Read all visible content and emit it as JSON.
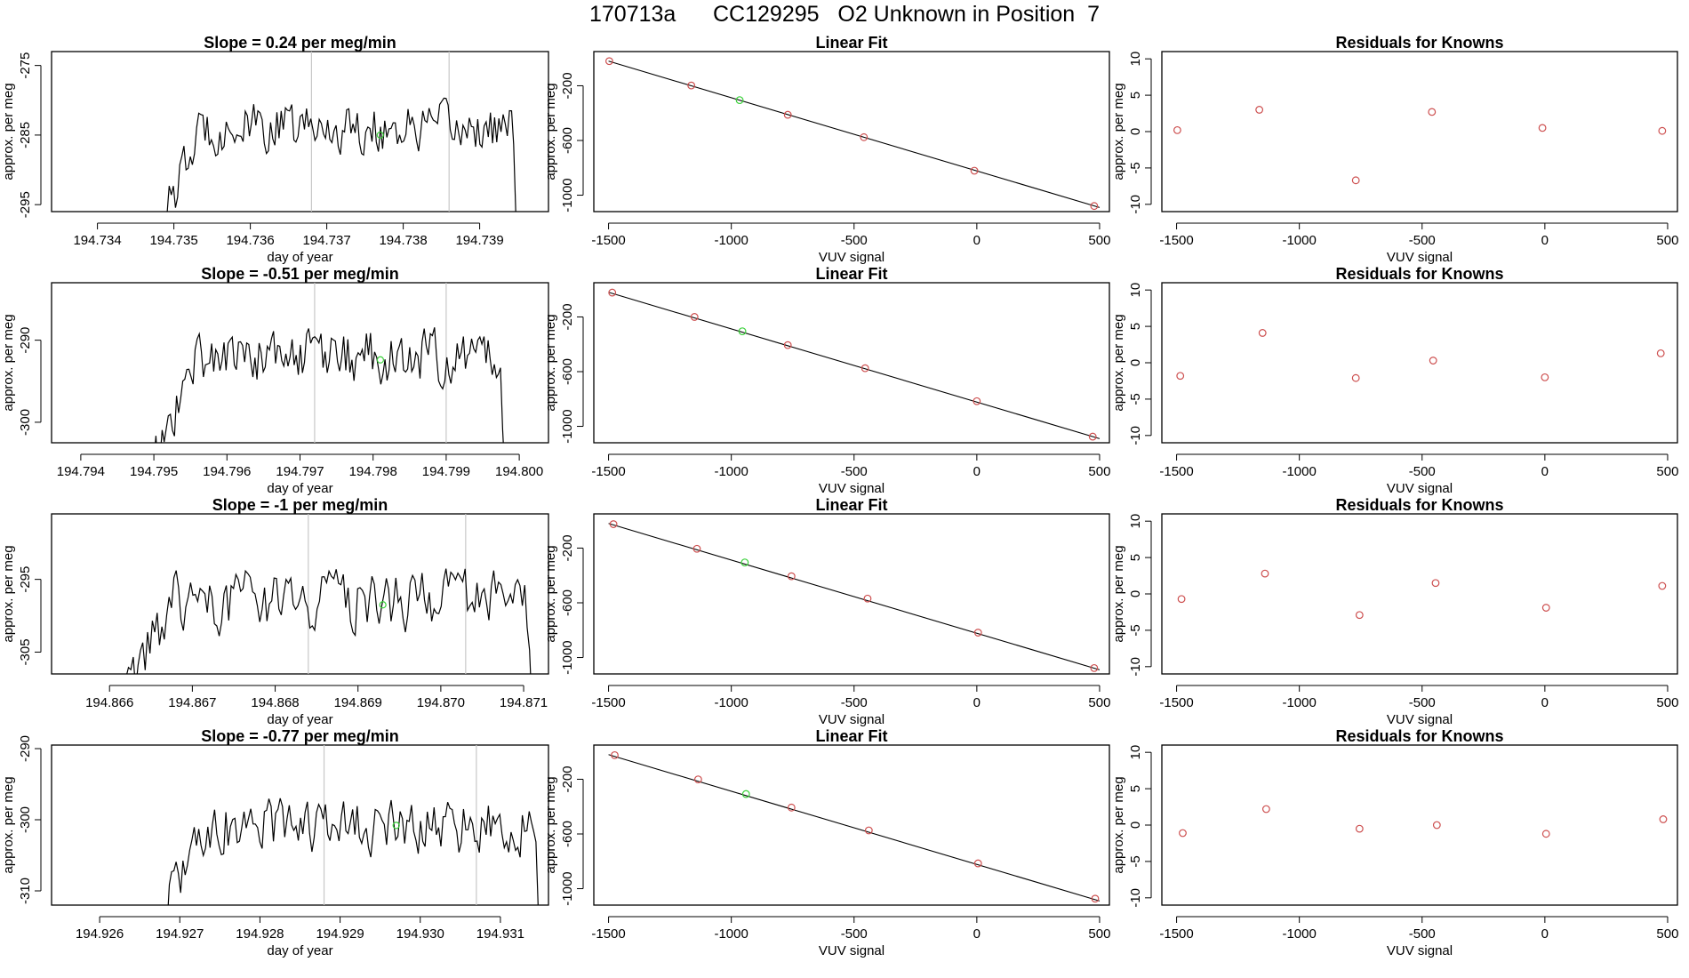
{
  "figure_title": "170713a      CC129295   O2 Unknown in Position  7",
  "colors": {
    "trace": "#000000",
    "known_point": "#cd4f4f",
    "unknown_point": "#39d039",
    "divider": "#c8c8c8"
  },
  "chart_data": [
    {
      "type": "line",
      "panel": "time-series",
      "title": "Slope =  0.24  per meg/min",
      "xlabel": "day of year",
      "ylabel": "approx. per meg",
      "xlim": [
        194.7334,
        194.7399
      ],
      "ylim": [
        -296,
        -273
      ],
      "xticks": [
        194.734,
        194.735,
        194.736,
        194.737,
        194.738,
        194.739
      ],
      "xtick_labels": [
        "194.734",
        "194.735",
        "194.736",
        "194.737",
        "194.738",
        "194.739"
      ],
      "yticks": [
        -295,
        -285,
        -275
      ],
      "ytick_labels": [
        "-295",
        "-285",
        "-275"
      ],
      "trace_start": 194.7348,
      "trace_end": 194.7395,
      "level": -284.0,
      "noise": 3.2,
      "dividers": [
        194.7368,
        194.7386
      ],
      "unknown_point": {
        "x": 194.7377,
        "y": -285.0
      }
    },
    {
      "type": "scatter",
      "panel": "linear-fit",
      "title": "Linear Fit",
      "xlabel": "VUV signal",
      "ylabel": "approx. per meg",
      "xlim": [
        -1560,
        540
      ],
      "ylim": [
        -1120,
        50
      ],
      "xticks": [
        -1500,
        -1000,
        -500,
        0,
        500
      ],
      "xtick_labels": [
        "-1500",
        "-1000",
        "-500",
        "0",
        "500"
      ],
      "yticks": [
        -1000,
        -600,
        -200
      ],
      "ytick_labels": [
        "-1000",
        "-600",
        "-200"
      ],
      "fit_line": {
        "x": [
          -1500,
          500
        ],
        "y": [
          -20,
          -1090
        ]
      },
      "knowns": [
        {
          "x": -1497,
          "y": -20
        },
        {
          "x": -1163,
          "y": -198
        },
        {
          "x": -770,
          "y": -412
        },
        {
          "x": -460,
          "y": -576
        },
        {
          "x": -10,
          "y": -821
        },
        {
          "x": 478,
          "y": -1079
        }
      ],
      "unknown": {
        "x": -966,
        "y": -305
      }
    },
    {
      "type": "scatter",
      "panel": "residuals",
      "title": "Residuals for Knowns",
      "xlabel": "VUV signal",
      "ylabel": "approx. per meg",
      "xlim": [
        -1560,
        540
      ],
      "ylim": [
        -11,
        11
      ],
      "xticks": [
        -1500,
        -1000,
        -500,
        0,
        500
      ],
      "xtick_labels": [
        "-1500",
        "-1000",
        "-500",
        "0",
        "500"
      ],
      "yticks": [
        -10,
        -5,
        0,
        5,
        10
      ],
      "ytick_labels": [
        "-10",
        "-5",
        "0",
        "5",
        "10"
      ],
      "points": [
        {
          "x": -1497,
          "y": 0.2
        },
        {
          "x": -1163,
          "y": 3.0
        },
        {
          "x": -770,
          "y": -6.7
        },
        {
          "x": -460,
          "y": 2.7
        },
        {
          "x": -10,
          "y": 0.5
        },
        {
          "x": 478,
          "y": 0.1
        }
      ]
    },
    {
      "type": "line",
      "panel": "time-series",
      "title": "Slope =  -0.51  per meg/min",
      "xlabel": "day of year",
      "ylabel": "approx. per meg",
      "xlim": [
        194.7936,
        194.8004
      ],
      "ylim": [
        -302.5,
        -283
      ],
      "xticks": [
        194.794,
        194.795,
        194.796,
        194.797,
        194.798,
        194.799,
        194.8
      ],
      "xtick_labels": [
        "194.794",
        "194.795",
        "194.796",
        "194.797",
        "194.798",
        "194.799",
        "194.800"
      ],
      "yticks": [
        -300,
        -290
      ],
      "ytick_labels": [
        "-300",
        "-290"
      ],
      "trace_start": 194.795,
      "trace_end": 194.7998,
      "level": -292.0,
      "noise": 3.0,
      "dividers": [
        194.7972,
        194.799
      ],
      "unknown_point": {
        "x": 194.7981,
        "y": -292.4
      }
    },
    {
      "type": "scatter",
      "panel": "linear-fit",
      "title": "Linear Fit",
      "xlabel": "VUV signal",
      "ylabel": "approx. per meg",
      "xlim": [
        -1560,
        540
      ],
      "ylim": [
        -1120,
        50
      ],
      "xticks": [
        -1500,
        -1000,
        -500,
        0,
        500
      ],
      "xtick_labels": [
        "-1500",
        "-1000",
        "-500",
        "0",
        "500"
      ],
      "yticks": [
        -1000,
        -600,
        -200
      ],
      "ytick_labels": [
        "-1000",
        "-600",
        "-200"
      ],
      "fit_line": {
        "x": [
          -1500,
          500
        ],
        "y": [
          -20,
          -1090
        ]
      },
      "knowns": [
        {
          "x": -1485,
          "y": -22
        },
        {
          "x": -1150,
          "y": -200
        },
        {
          "x": -770,
          "y": -406
        },
        {
          "x": -455,
          "y": -575
        },
        {
          "x": 0,
          "y": -816
        },
        {
          "x": 472,
          "y": -1075
        }
      ],
      "unknown": {
        "x": -955,
        "y": -305
      }
    },
    {
      "type": "scatter",
      "panel": "residuals",
      "title": "Residuals for Knowns",
      "xlabel": "VUV signal",
      "ylabel": "approx. per meg",
      "xlim": [
        -1560,
        540
      ],
      "ylim": [
        -11,
        11
      ],
      "xticks": [
        -1500,
        -1000,
        -500,
        0,
        500
      ],
      "xtick_labels": [
        "-1500",
        "-1000",
        "-500",
        "0",
        "500"
      ],
      "yticks": [
        -10,
        -5,
        0,
        5,
        10
      ],
      "ytick_labels": [
        "-10",
        "-5",
        "0",
        "5",
        "10"
      ],
      "points": [
        {
          "x": -1485,
          "y": -1.8
        },
        {
          "x": -1150,
          "y": 4.1
        },
        {
          "x": -770,
          "y": -2.1
        },
        {
          "x": -455,
          "y": 0.3
        },
        {
          "x": 0,
          "y": -2.0
        },
        {
          "x": 472,
          "y": 1.3
        }
      ]
    },
    {
      "type": "line",
      "panel": "time-series",
      "title": "Slope =  -1  per meg/min",
      "xlabel": "day of year",
      "ylabel": "approx. per meg",
      "xlim": [
        194.8653,
        194.8713
      ],
      "ylim": [
        -308,
        -286
      ],
      "xticks": [
        194.866,
        194.867,
        194.868,
        194.869,
        194.87,
        194.871
      ],
      "xtick_labels": [
        "194.866",
        "194.867",
        "194.868",
        "194.869",
        "194.870",
        "194.871"
      ],
      "yticks": [
        -305,
        -295
      ],
      "ytick_labels": [
        "-305",
        "-295"
      ],
      "trace_start": 194.8662,
      "trace_end": 194.8711,
      "level": -298.0,
      "noise": 3.6,
      "dividers": [
        194.8684,
        194.8703
      ],
      "unknown_point": {
        "x": 194.8693,
        "y": -298.5
      }
    },
    {
      "type": "scatter",
      "panel": "linear-fit",
      "title": "Linear Fit",
      "xlabel": "VUV signal",
      "ylabel": "approx. per meg",
      "xlim": [
        -1560,
        540
      ],
      "ylim": [
        -1120,
        50
      ],
      "xticks": [
        -1500,
        -1000,
        -500,
        0,
        500
      ],
      "xtick_labels": [
        "-1500",
        "-1000",
        "-500",
        "0",
        "500"
      ],
      "yticks": [
        -1000,
        -600,
        -200
      ],
      "ytick_labels": [
        "-1000",
        "-600",
        "-200"
      ],
      "fit_line": {
        "x": [
          -1500,
          500
        ],
        "y": [
          -20,
          -1090
        ]
      },
      "knowns": [
        {
          "x": -1480,
          "y": -25
        },
        {
          "x": -1140,
          "y": -205
        },
        {
          "x": -755,
          "y": -406
        },
        {
          "x": -445,
          "y": -569
        },
        {
          "x": 5,
          "y": -818
        },
        {
          "x": 478,
          "y": -1077
        }
      ],
      "unknown": {
        "x": -945,
        "y": -305
      }
    },
    {
      "type": "scatter",
      "panel": "residuals",
      "title": "Residuals for Knowns",
      "xlabel": "VUV signal",
      "ylabel": "approx. per meg",
      "xlim": [
        -1560,
        540
      ],
      "ylim": [
        -11,
        11
      ],
      "xticks": [
        -1500,
        -1000,
        -500,
        0,
        500
      ],
      "xtick_labels": [
        "-1500",
        "-1000",
        "-500",
        "0",
        "500"
      ],
      "yticks": [
        -10,
        -5,
        0,
        5,
        10
      ],
      "ytick_labels": [
        "-10",
        "-5",
        "0",
        "5",
        "10"
      ],
      "points": [
        {
          "x": -1480,
          "y": -0.7
        },
        {
          "x": -1140,
          "y": 2.8
        },
        {
          "x": -755,
          "y": -2.9
        },
        {
          "x": -445,
          "y": 1.5
        },
        {
          "x": 5,
          "y": -1.9
        },
        {
          "x": 478,
          "y": 1.1
        }
      ]
    },
    {
      "type": "line",
      "panel": "time-series",
      "title": "Slope =  -0.77  per meg/min",
      "xlabel": "day of year",
      "ylabel": "approx. per meg",
      "xlim": [
        194.9254,
        194.9316
      ],
      "ylim": [
        -312,
        -289.5
      ],
      "xticks": [
        194.926,
        194.927,
        194.928,
        194.929,
        194.93,
        194.931
      ],
      "xtick_labels": [
        "194.926",
        "194.927",
        "194.928",
        "194.929",
        "194.930",
        "194.931"
      ],
      "yticks": [
        -310,
        -300,
        -290
      ],
      "ytick_labels": [
        "-310",
        "-300",
        "-290"
      ],
      "trace_start": 194.9267,
      "trace_end": 194.9315,
      "level": -301.0,
      "noise": 3.5,
      "dividers": [
        194.9288,
        194.9307
      ],
      "unknown_point": {
        "x": 194.9297,
        "y": -300.8
      }
    },
    {
      "type": "scatter",
      "panel": "linear-fit",
      "title": "Linear Fit",
      "xlabel": "VUV signal",
      "ylabel": "approx. per meg",
      "xlim": [
        -1560,
        540
      ],
      "ylim": [
        -1120,
        50
      ],
      "xticks": [
        -1500,
        -1000,
        -500,
        0,
        500
      ],
      "xtick_labels": [
        "-1500",
        "-1000",
        "-500",
        "0",
        "500"
      ],
      "yticks": [
        -1000,
        -600,
        -200
      ],
      "ytick_labels": [
        "-1000",
        "-600",
        "-200"
      ],
      "fit_line": {
        "x": [
          -1500,
          500
        ],
        "y": [
          -20,
          -1090
        ]
      },
      "knowns": [
        {
          "x": -1475,
          "y": -24
        },
        {
          "x": -1135,
          "y": -201
        },
        {
          "x": -755,
          "y": -407
        },
        {
          "x": -440,
          "y": -574
        },
        {
          "x": 5,
          "y": -815
        },
        {
          "x": 482,
          "y": -1073
        }
      ],
      "unknown": {
        "x": -940,
        "y": -308
      }
    },
    {
      "type": "scatter",
      "panel": "residuals",
      "title": "Residuals for Knowns",
      "xlabel": "VUV signal",
      "ylabel": "approx. per meg",
      "xlim": [
        -1560,
        540
      ],
      "ylim": [
        -11,
        11
      ],
      "xticks": [
        -1500,
        -1000,
        -500,
        0,
        500
      ],
      "xtick_labels": [
        "-1500",
        "-1000",
        "-500",
        "0",
        "500"
      ],
      "yticks": [
        -10,
        -5,
        0,
        5,
        10
      ],
      "ytick_labels": [
        "-10",
        "-5",
        "0",
        "5",
        "10"
      ],
      "points": [
        {
          "x": -1475,
          "y": -1.1
        },
        {
          "x": -1135,
          "y": 2.2
        },
        {
          "x": -755,
          "y": -0.5
        },
        {
          "x": -440,
          "y": 0.0
        },
        {
          "x": 5,
          "y": -1.2
        },
        {
          "x": 482,
          "y": 0.8
        }
      ]
    }
  ]
}
